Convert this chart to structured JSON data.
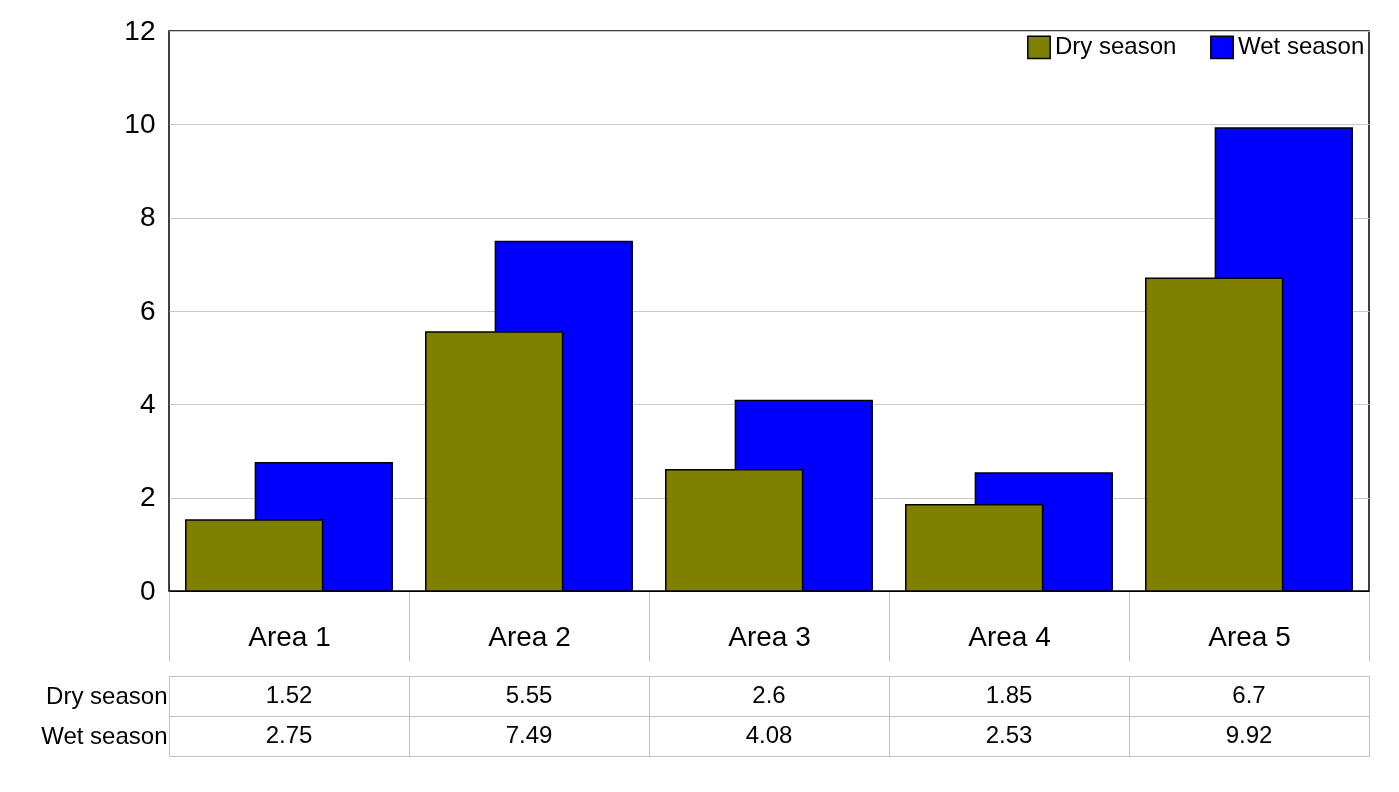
{
  "chart_data": {
    "type": "bar",
    "categories": [
      "Area 1",
      "Area 2",
      "Area 3",
      "Area 4",
      "Area 5"
    ],
    "series": [
      {
        "name": "Dry season",
        "color": "#808000",
        "values": [
          1.52,
          5.55,
          2.6,
          1.85,
          6.7
        ]
      },
      {
        "name": "Wet season",
        "color": "#0000ff",
        "values": [
          2.75,
          7.49,
          4.08,
          2.53,
          9.92
        ]
      }
    ],
    "ylim": [
      0,
      12
    ],
    "yticks": [
      0,
      2,
      4,
      6,
      8,
      10,
      12
    ],
    "grid": "y",
    "legend": "top right",
    "data_labels": true
  }
}
